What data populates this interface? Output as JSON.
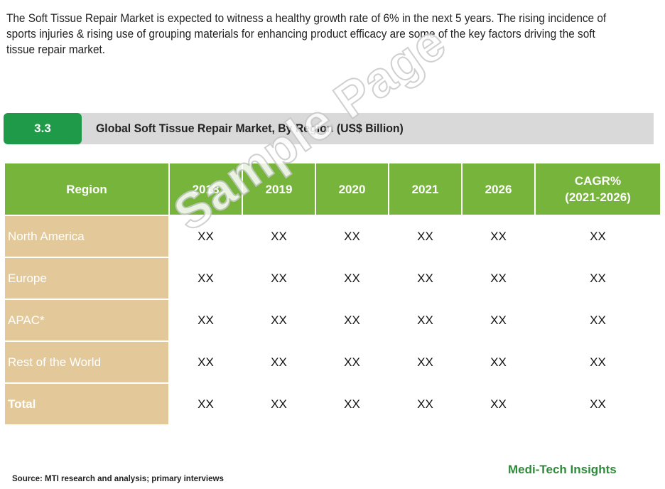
{
  "intro_text": "The Soft Tissue Repair Market is expected to witness a healthy growth rate of 6% in the next 5 years. The rising incidence of sports injuries & rising use of grouping materials for enhancing product efficacy are some of the key factors driving the soft tissue repair market.",
  "section": {
    "number": "3.3",
    "title": "Global Soft Tissue Repair Market, By Region (US$ Billion)"
  },
  "table": {
    "headers": [
      "Region",
      "2018",
      "2019",
      "2020",
      "2021",
      "2026",
      "CAGR%",
      "(2021-2026)"
    ],
    "rows": [
      {
        "region": "North America",
        "values": [
          "XX",
          "XX",
          "XX",
          "XX",
          "XX",
          "XX"
        ]
      },
      {
        "region": "Europe",
        "values": [
          "XX",
          "XX",
          "XX",
          "XX",
          "XX",
          "XX"
        ]
      },
      {
        "region": "APAC*",
        "values": [
          "XX",
          "XX",
          "XX",
          "XX",
          "XX",
          "XX"
        ]
      },
      {
        "region": "Rest of the World",
        "values": [
          "XX",
          "XX",
          "XX",
          "XX",
          "XX",
          "XX"
        ]
      },
      {
        "region": "Total",
        "values": [
          "XX",
          "XX",
          "XX",
          "XX",
          "XX",
          "XX"
        ]
      }
    ]
  },
  "watermark": "Sample Page",
  "source": "Source: MTI research and analysis; primary interviews",
  "brand": "Medi-Tech Insights",
  "colors": {
    "header_green": "#76b43c",
    "section_green": "#1e9a48",
    "region_tan": "#e3c99a",
    "bar_gray": "#d9d9d9",
    "brand_green": "#2e8b3a"
  }
}
